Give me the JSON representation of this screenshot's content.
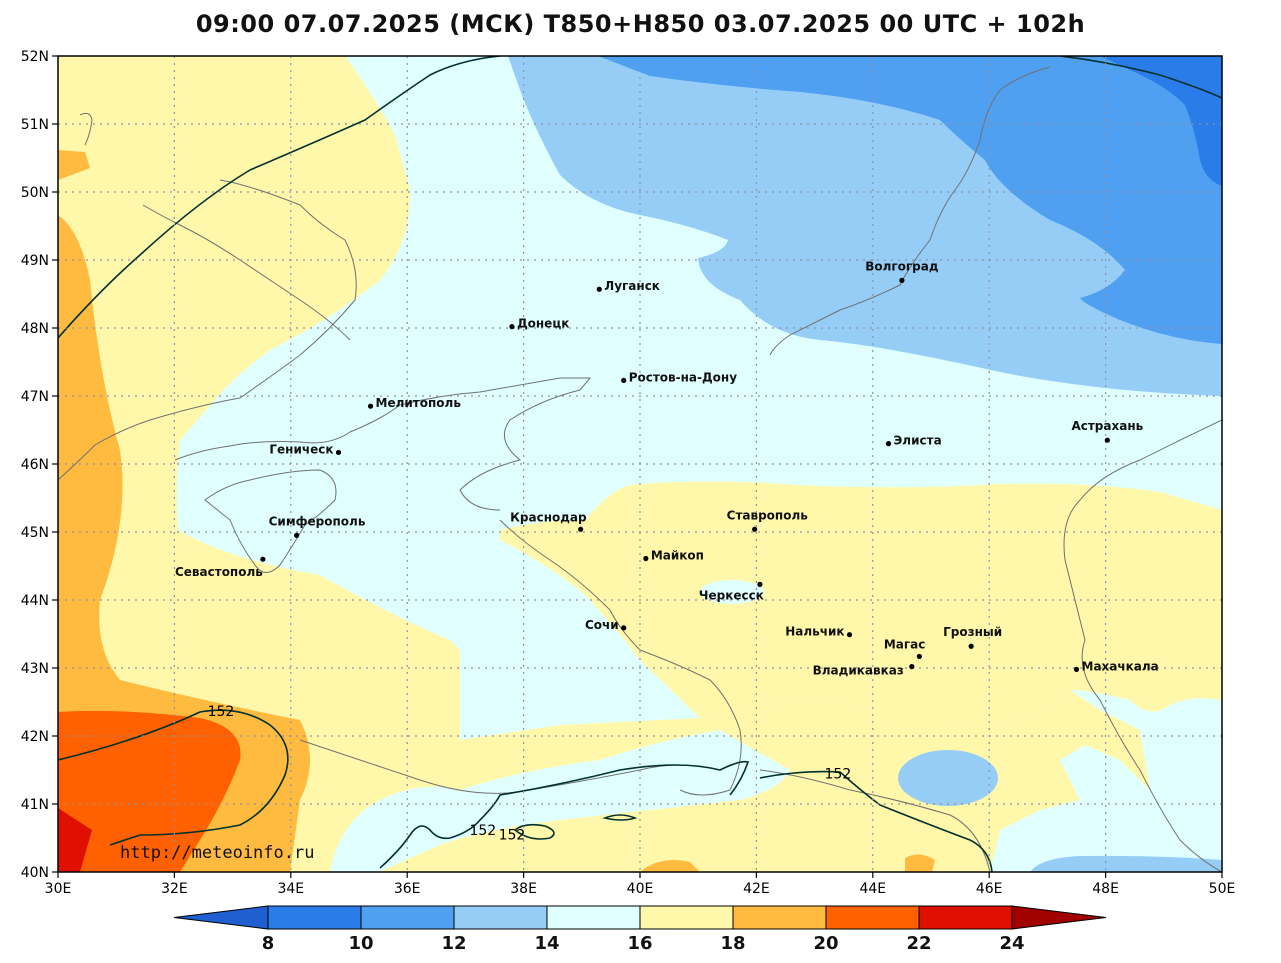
{
  "title": "09:00 07.07.2025 (МСК) T850+H850 03.07.2025 00 UTC + 102h",
  "credit": "http://meteoinfo.ru",
  "lon_labels": [
    "30E",
    "32E",
    "34E",
    "36E",
    "38E",
    "40E",
    "42E",
    "44E",
    "46E",
    "48E",
    "50E"
  ],
  "lat_labels": [
    "52N",
    "51N",
    "50N",
    "49N",
    "48N",
    "47N",
    "46N",
    "45N",
    "44N",
    "43N",
    "42N",
    "41N",
    "40N"
  ],
  "lon_range": [
    30,
    50
  ],
  "lat_range": [
    40,
    52
  ],
  "colorbar": {
    "labels": [
      "8",
      "10",
      "12",
      "14",
      "16",
      "18",
      "20",
      "22",
      "24"
    ],
    "colors": [
      "#1f5fd0",
      "#2a7de8",
      "#4fa0f0",
      "#96cdf7",
      "#e0ffff",
      "#fff8aa",
      "#ffbb40",
      "#ff6000",
      "#e01000",
      "#a00000"
    ]
  },
  "contour_labels": [
    {
      "text": "152",
      "lon": 32.8,
      "lat": 42.37
    },
    {
      "text": "152",
      "lon": 37.3,
      "lat": 40.62
    },
    {
      "text": "152",
      "lon": 37.8,
      "lat": 40.55
    },
    {
      "text": "152",
      "lon": 43.4,
      "lat": 41.45
    }
  ],
  "cities": [
    {
      "name": "Волгоград",
      "lon": 44.5,
      "lat": 48.7
    },
    {
      "name": "Луганск",
      "lon": 39.3,
      "lat": 48.57
    },
    {
      "name": "Донецк",
      "lon": 37.8,
      "lat": 48.02
    },
    {
      "name": "Ростов-на-Дону",
      "lon": 39.72,
      "lat": 47.23
    },
    {
      "name": "Мелитополь",
      "lon": 35.37,
      "lat": 46.85
    },
    {
      "name": "Элиста",
      "lon": 44.27,
      "lat": 46.3
    },
    {
      "name": "Астрахань",
      "lon": 48.03,
      "lat": 46.35
    },
    {
      "name": "Геническ",
      "lon": 34.82,
      "lat": 46.17
    },
    {
      "name": "Краснодар",
      "lon": 38.98,
      "lat": 45.04
    },
    {
      "name": "Ставрополь",
      "lon": 41.97,
      "lat": 45.04
    },
    {
      "name": "Симферополь",
      "lon": 34.1,
      "lat": 44.95
    },
    {
      "name": "Майкоп",
      "lon": 40.1,
      "lat": 44.61
    },
    {
      "name": "Севастополь",
      "lon": 33.52,
      "lat": 44.6
    },
    {
      "name": "Черкесск",
      "lon": 42.06,
      "lat": 44.23
    },
    {
      "name": "Сочи",
      "lon": 39.72,
      "lat": 43.59
    },
    {
      "name": "Нальчик",
      "lon": 43.6,
      "lat": 43.49
    },
    {
      "name": "Грозный",
      "lon": 45.69,
      "lat": 43.32
    },
    {
      "name": "Магас",
      "lon": 44.8,
      "lat": 43.17
    },
    {
      "name": "Махачкала",
      "lon": 47.5,
      "lat": 42.98
    },
    {
      "name": "Владикавказ",
      "lon": 44.67,
      "lat": 43.02
    }
  ]
}
